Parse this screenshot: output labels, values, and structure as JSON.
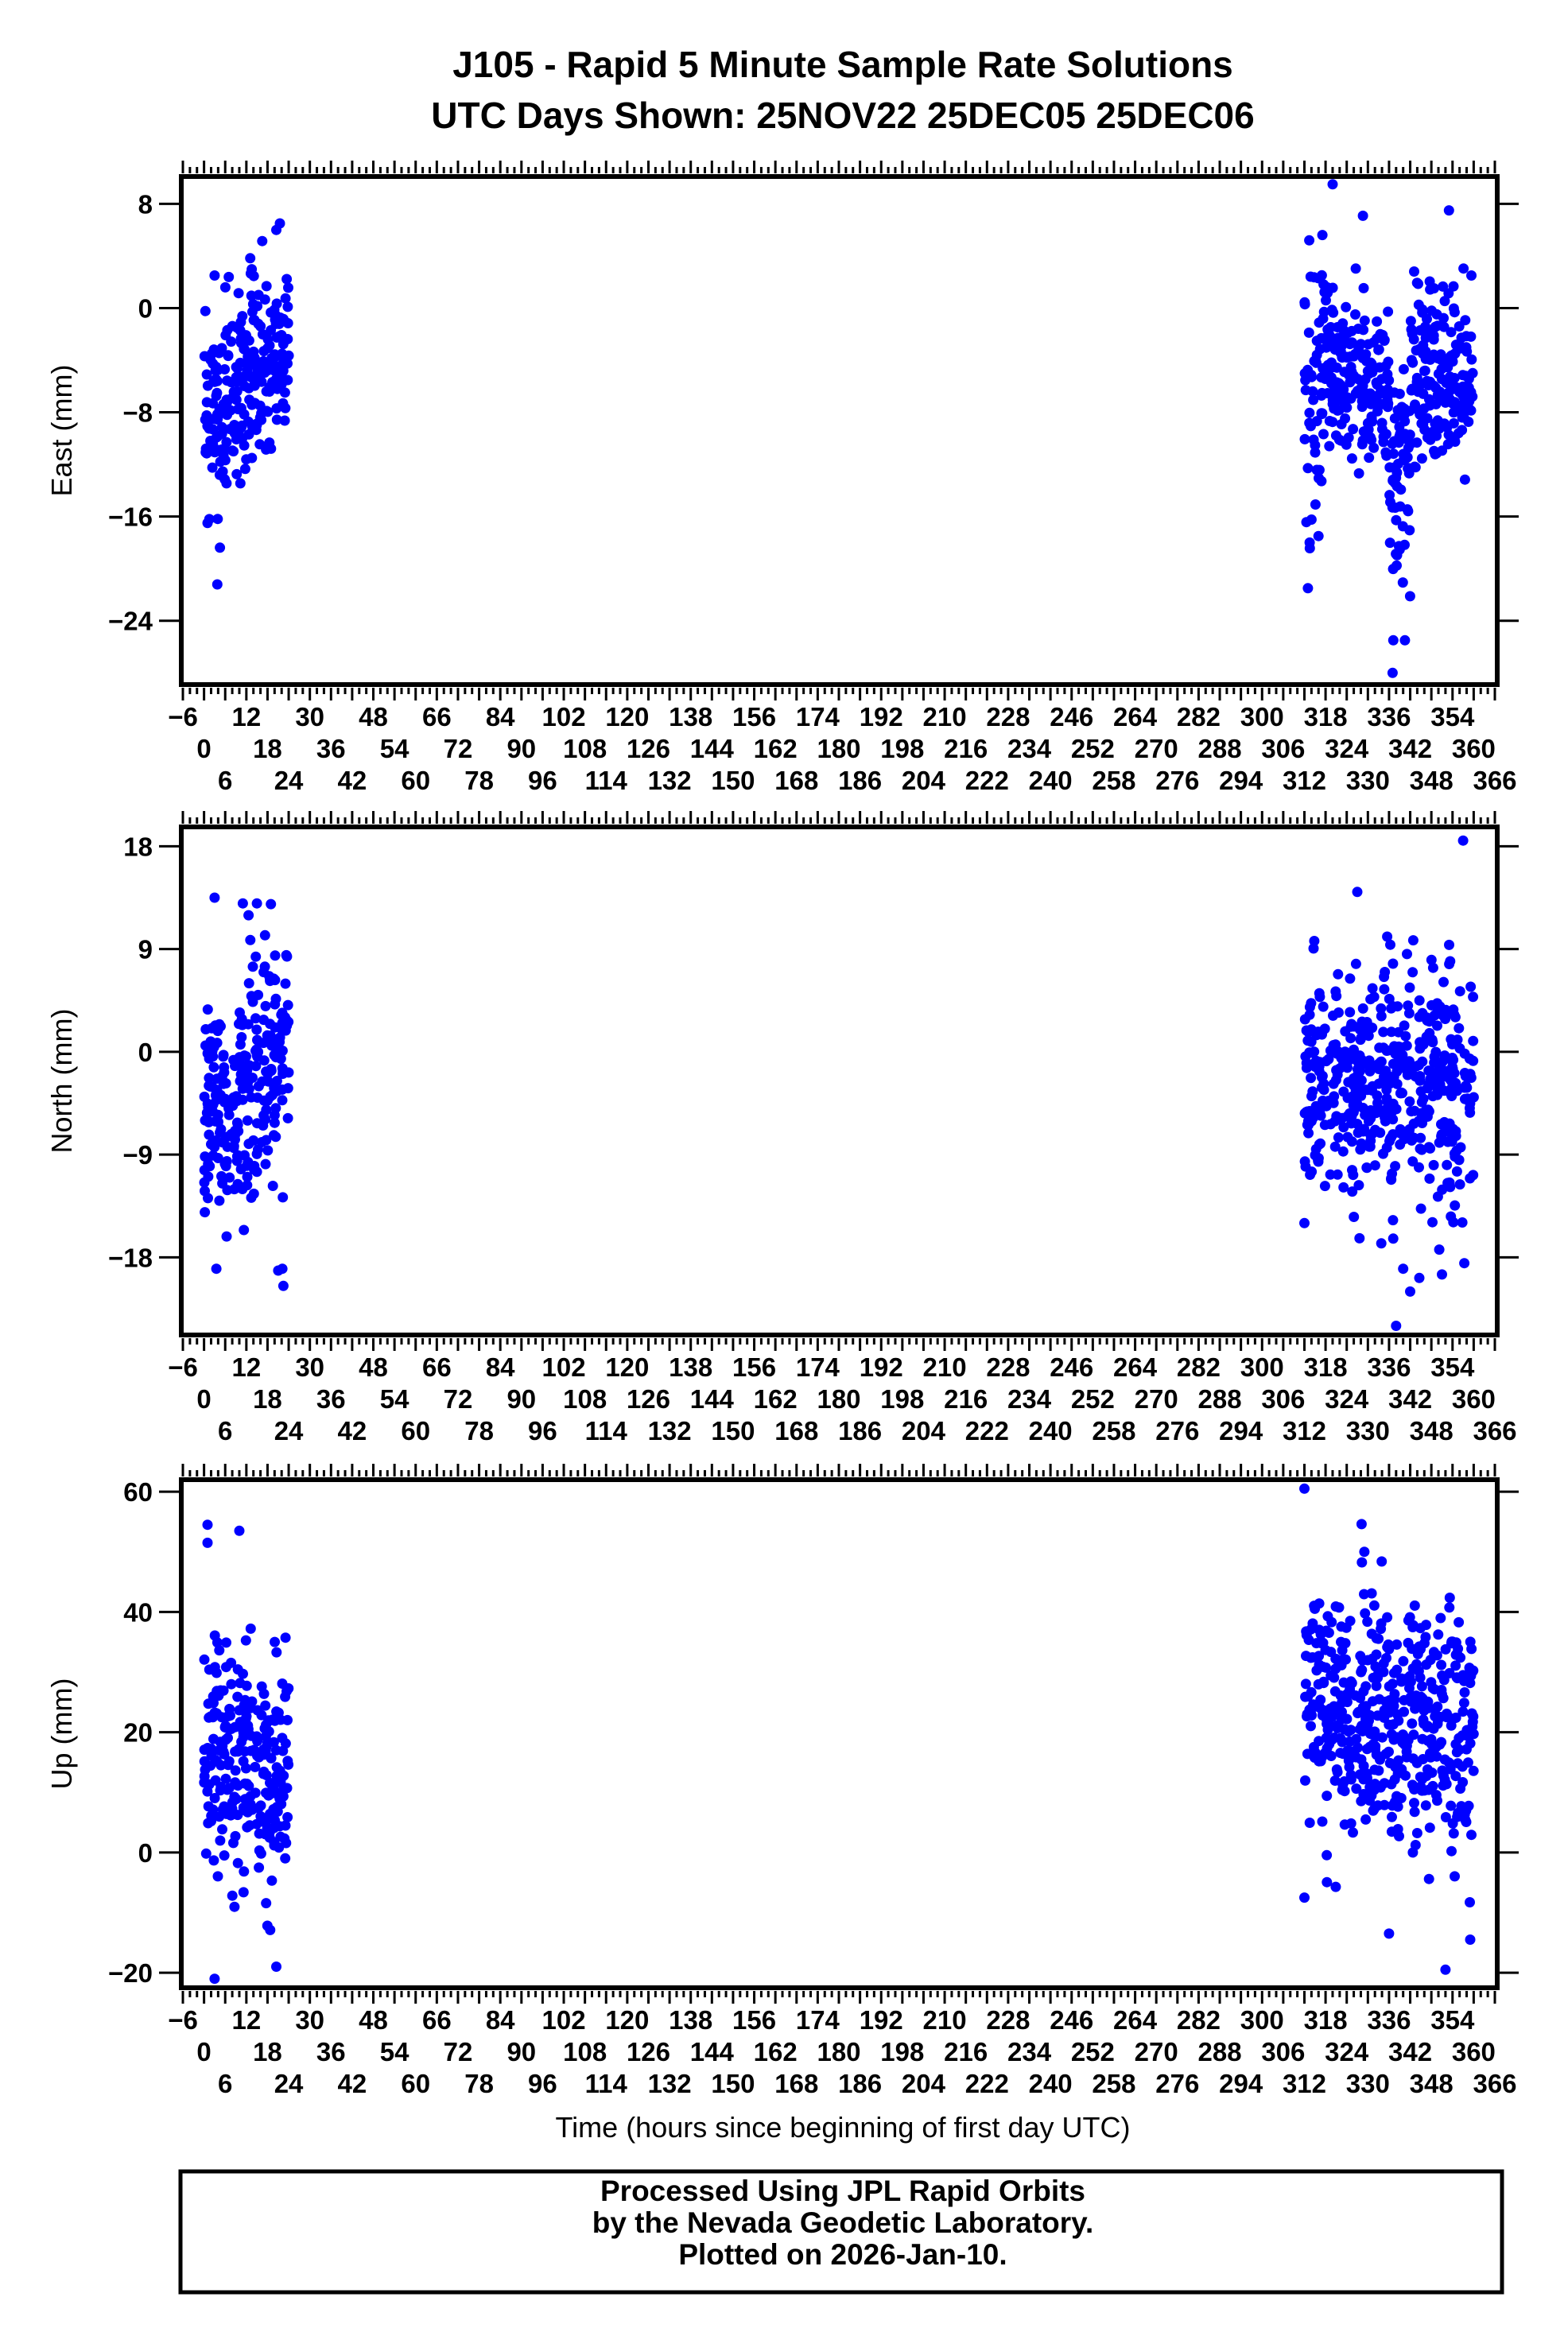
{
  "title_line1": "J105 - Rapid 5 Minute Sample Rate Solutions",
  "title_line2": "UTC Days Shown:  25NOV22 25DEC05 25DEC06",
  "footer": {
    "line1": "Processed Using JPL Rapid Orbits",
    "line2": "by the Nevada Geodetic Laboratory.",
    "line3": "Plotted on 2026-Jan-10."
  },
  "colors": {
    "points": "#0000ff",
    "axes": "#000000"
  },
  "chart_data": {
    "type": "scatter",
    "xlabel": "Time (hours since beginning of first day UTC)",
    "xlim": [
      -6,
      366
    ],
    "xticks": [
      "-6",
      "0",
      "6",
      "12",
      "18",
      "24",
      "30",
      "36",
      "42",
      "48",
      "54",
      "60",
      "66",
      "72",
      "78",
      "84",
      "90",
      "96",
      "102",
      "108",
      "114",
      "120",
      "126",
      "132",
      "138",
      "144",
      "150",
      "156",
      "162",
      "168",
      "174",
      "180",
      "186",
      "192",
      "198",
      "204",
      "210",
      "216",
      "222",
      "228",
      "234",
      "240",
      "246",
      "252",
      "258",
      "264",
      "270",
      "276",
      "282",
      "288",
      "294",
      "300",
      "306",
      "312",
      "318",
      "324",
      "330",
      "336",
      "342",
      "348",
      "354",
      "360",
      "366"
    ],
    "grid": false,
    "panels": [
      {
        "name": "east",
        "ylabel": "East (mm)",
        "ylim": [
          -28.9,
          10.1
        ],
        "yticks": [
          "8",
          "0",
          "-8",
          "-16",
          "-24"
        ],
        "seed": 11,
        "segments": [
          [
            0,
            6,
            -8,
            3.5,
            62
          ],
          [
            6,
            12,
            -7,
            3.5,
            62
          ],
          [
            12,
            18,
            -5,
            3.5,
            62
          ],
          [
            18,
            24,
            -3.5,
            3.2,
            62
          ],
          [
            312,
            318,
            -6,
            5,
            60
          ],
          [
            318,
            330,
            -5,
            3.5,
            120
          ],
          [
            330,
            336,
            -7,
            3,
            60
          ],
          [
            336,
            342,
            -12,
            4,
            60
          ],
          [
            342,
            348,
            -5,
            3.5,
            60
          ],
          [
            348,
            360,
            -5,
            3.5,
            120
          ]
        ],
        "points": [
          [
            1,
            -16.5
          ],
          [
            1.5,
            -16.2
          ],
          [
            3,
            2.5
          ],
          [
            20.5,
            6
          ],
          [
            21.5,
            6.5
          ],
          [
            313,
            -21.5
          ],
          [
            320,
            9.5
          ],
          [
            337,
            -28
          ],
          [
            337.2,
            -25.5
          ],
          [
            340.5,
            -25.5
          ],
          [
            353,
            7.5
          ],
          [
            313.5,
            -18
          ],
          [
            316,
            -17.5
          ]
        ]
      },
      {
        "name": "north",
        "ylabel": "North (mm)",
        "ylim": [
          -24.8,
          19.7
        ],
        "yticks": [
          "18",
          "9",
          "0",
          "-9",
          "-18"
        ],
        "seed": 23,
        "segments": [
          [
            0,
            12,
            -5,
            5,
            125
          ],
          [
            12,
            24,
            -3,
            5.5,
            125
          ],
          [
            312,
            336,
            -3,
            4.8,
            240
          ],
          [
            336,
            360,
            -3.5,
            5,
            240
          ]
        ],
        "points": [
          [
            3,
            13.5
          ],
          [
            11,
            13
          ],
          [
            15,
            13
          ],
          [
            22.5,
            -20.5
          ],
          [
            22.2,
            -19
          ],
          [
            3.5,
            -19
          ],
          [
            312,
            -15
          ],
          [
            327,
            14
          ],
          [
            338,
            -24
          ],
          [
            340,
            -19
          ],
          [
            357,
            18.5
          ],
          [
            351,
            -19.5
          ],
          [
            342,
            -21
          ]
        ]
      },
      {
        "name": "up",
        "ylabel": "Up (mm)",
        "ylim": [
          -22.5,
          62
        ],
        "yticks": [
          "60",
          "40",
          "20",
          "0",
          "-20"
        ],
        "seed": 37,
        "segments": [
          [
            0,
            12,
            18,
            10,
            125
          ],
          [
            12,
            24,
            12,
            9,
            125
          ],
          [
            312,
            336,
            24,
            10,
            240
          ],
          [
            336,
            360,
            21,
            10,
            240
          ]
        ],
        "points": [
          [
            1,
            54.5
          ],
          [
            1,
            51.5
          ],
          [
            10,
            53.5
          ],
          [
            3,
            -21
          ],
          [
            20.5,
            -19
          ],
          [
            312,
            60.5
          ],
          [
            312,
            -7.5
          ],
          [
            336,
            -13.5
          ],
          [
            352,
            -19.5
          ],
          [
            359,
            -14.5
          ],
          [
            329,
            50
          ]
        ]
      }
    ]
  }
}
